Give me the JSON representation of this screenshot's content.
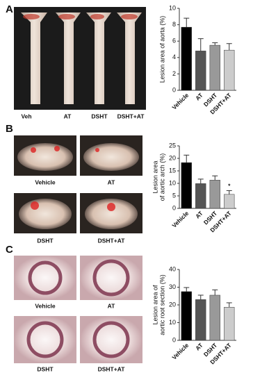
{
  "figure": {
    "panels": [
      "A",
      "B",
      "C"
    ],
    "photo_labels_a": [
      "Veh",
      "AT",
      "DSHT",
      "DSHT+AT"
    ],
    "photo_labels_b": [
      "Vehicle",
      "AT",
      "DSHT",
      "DSHT+AT"
    ],
    "photo_labels_c": [
      "Vehicle",
      "AT",
      "DSHT",
      "DSHT+AT"
    ]
  },
  "chart_data": [
    {
      "type": "bar",
      "ylabel": [
        "Lesion area of aorta (%)"
      ],
      "categories": [
        "Vehicle",
        "AT",
        "DSHT",
        "DSHT+AT"
      ],
      "values": [
        7.7,
        4.8,
        5.5,
        4.9
      ],
      "errors": [
        1.1,
        1.5,
        0.3,
        0.8
      ],
      "colors": [
        "#000000",
        "#555555",
        "#999999",
        "#cccccc"
      ],
      "ylim": [
        0,
        10
      ],
      "yticks": [
        0,
        2,
        4,
        6,
        8,
        10
      ]
    },
    {
      "type": "bar",
      "ylabel": [
        "Lesion area",
        "of aortic arch (%)"
      ],
      "categories": [
        "Vehicle",
        "AT",
        "DSHT",
        "DSHT+AT"
      ],
      "values": [
        18.3,
        9.9,
        11.3,
        5.6
      ],
      "errors": [
        3,
        1.8,
        1.7,
        1.5
      ],
      "colors": [
        "#000000",
        "#555555",
        "#999999",
        "#cccccc"
      ],
      "significance": [
        null,
        null,
        null,
        "*"
      ],
      "ylim": [
        0,
        25
      ],
      "yticks": [
        0,
        5,
        10,
        15,
        20,
        25
      ]
    },
    {
      "type": "bar",
      "ylabel": [
        "Lesion area of",
        "aortic root section (%)"
      ],
      "categories": [
        "Vehicle",
        "AT",
        "DSHT",
        "DSHT+AT"
      ],
      "values": [
        27.5,
        23,
        25.5,
        18.7
      ],
      "errors": [
        2.3,
        2.5,
        3,
        2.5
      ],
      "colors": [
        "#000000",
        "#555555",
        "#999999",
        "#cccccc"
      ],
      "ylim": [
        0,
        40
      ],
      "yticks": [
        0,
        10,
        20,
        30,
        40
      ]
    }
  ]
}
